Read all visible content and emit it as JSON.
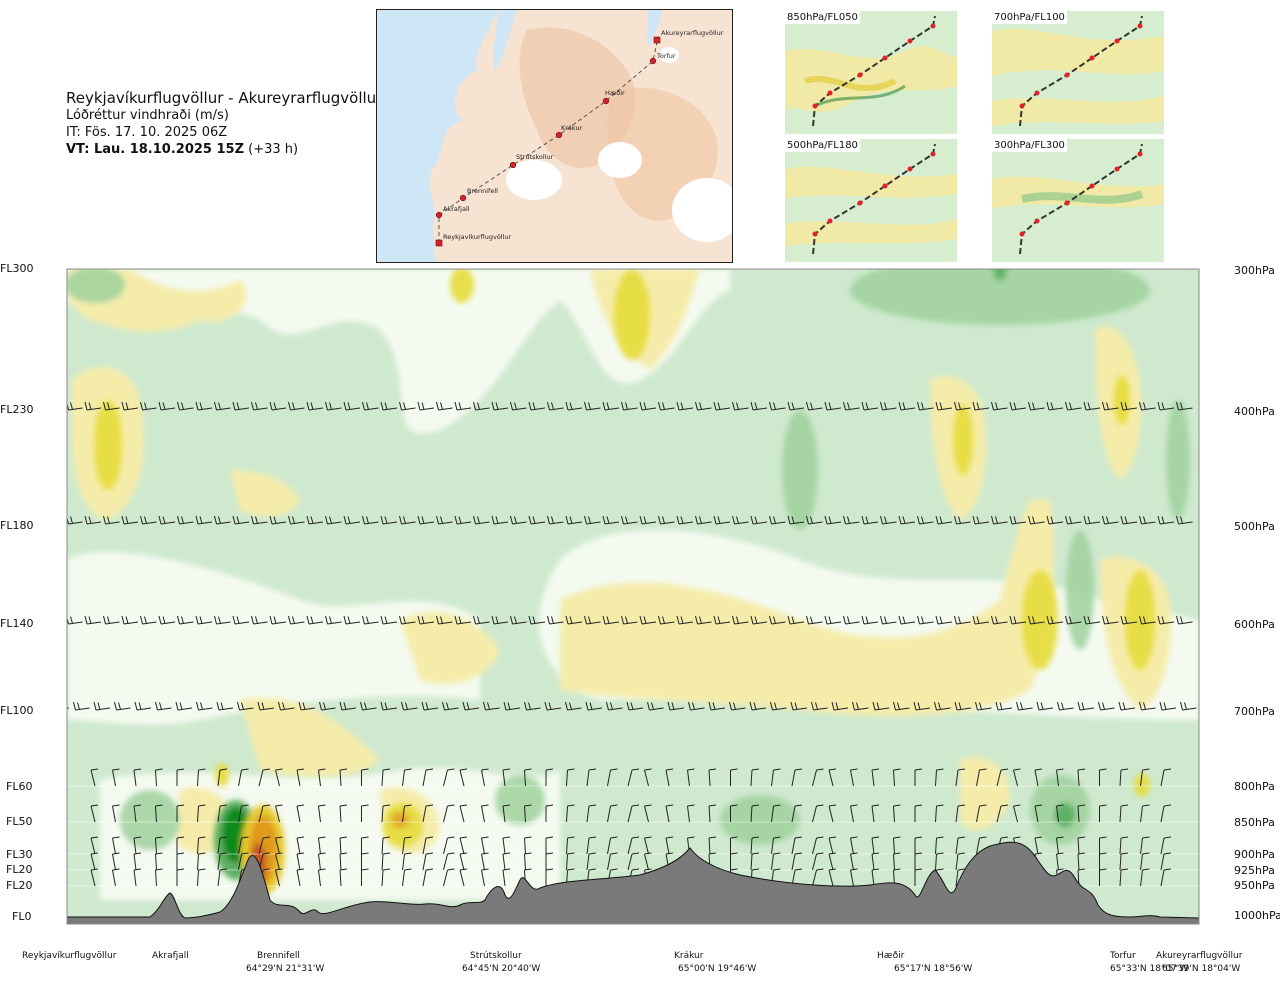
{
  "header": {
    "route": "Reykjavíkurflugvöllur - Akureyrarflugvöllur",
    "subtitle": "Lóðréttur vindhraði (m/s)",
    "issue_time": "IT: Fös. 17. 10. 2025 06Z",
    "valid_time_bold": "VT: Lau. 18.10.2025 15Z",
    "valid_time_offset": "(+33 h)"
  },
  "route_map": {
    "points": [
      "Akureyrarflugvöllur",
      "Torfur",
      "Hæðir",
      "Krákur",
      "Strútskollur",
      "Brennifell",
      "Akrafjall",
      "Reykjavíkurflugvöllur"
    ]
  },
  "mini_maps": [
    {
      "label": "850hPa/FL050"
    },
    {
      "label": "700hPa/FL100"
    },
    {
      "label": "500hPa/FL180"
    },
    {
      "label": "300hPa/FL300"
    }
  ],
  "chart_data": {
    "type": "heatmap",
    "title": "Lóðréttur vindhraði (m/s)",
    "y_left_levels": [
      "FL300",
      "FL230",
      "FL180",
      "FL140",
      "FL100",
      "FL60",
      "FL50",
      "FL30",
      "FL20",
      "FL20",
      "FL0"
    ],
    "y_right_levels": [
      "300hPa",
      "400hPa",
      "500hPa",
      "600hPa",
      "700hPa",
      "800hPa",
      "850hPa",
      "900hPa",
      "925hPa",
      "950hPa",
      "1000hPa"
    ],
    "x_locations": [
      {
        "name": "Reykjavíkurflugvöllur",
        "coord": ""
      },
      {
        "name": "Akrafjall",
        "coord": ""
      },
      {
        "name": "Brennifell",
        "coord": "64°29'N 21°31'W"
      },
      {
        "name": "Strútskollur",
        "coord": "64°45'N 20°40'W"
      },
      {
        "name": "Krákur",
        "coord": "65°00'N 19°46'W"
      },
      {
        "name": "Hæðir",
        "coord": "65°17'N 18°56'W"
      },
      {
        "name": "Torfur",
        "coord": "65°33'N 18°07'W"
      },
      {
        "name": "Akureyrarflugvöllur",
        "coord": "65°39'N 18°04'W"
      }
    ],
    "color_scale": {
      "strong_down": "#0e8a1e",
      "down": "#7cc381",
      "weak_down": "#cde9cf",
      "neutral": "#f4faf0",
      "weak_up": "#f6eeab",
      "up": "#e8dc3a",
      "strong_up": "#e09a1f",
      "very_strong_up": "#c4541a"
    },
    "terrain_color": "#7a7a7a"
  }
}
